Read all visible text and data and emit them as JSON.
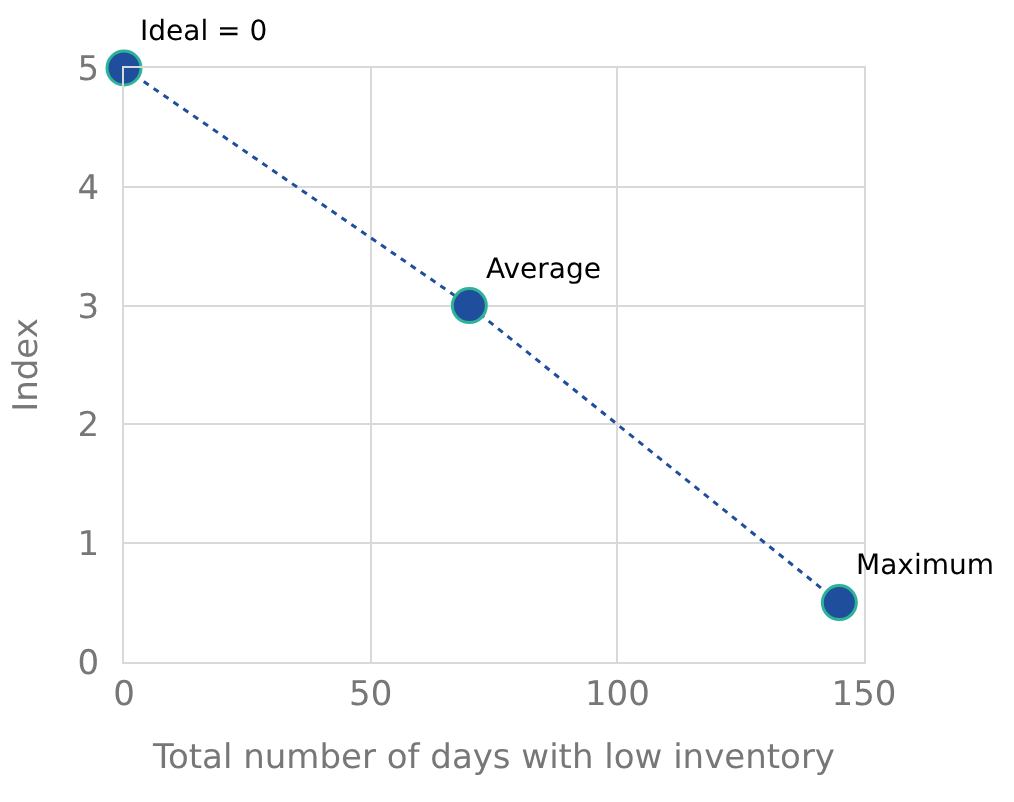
{
  "chart_data": {
    "type": "scatter",
    "xlabel": "Total number of days with low inventory",
    "ylabel": "Index",
    "x": [
      0,
      70,
      145
    ],
    "series": [
      {
        "color": "#1f4e9c",
        "values": [
          5,
          3,
          0.5
        ]
      }
    ],
    "line_style": "dotted",
    "marker": "circle",
    "xlim": [
      0,
      150
    ],
    "xticks": [
      0,
      50,
      100,
      150
    ],
    "ylim": [
      0,
      5
    ],
    "yticks": [
      0,
      1,
      2,
      3,
      4,
      5
    ],
    "grid": true,
    "annotations": [
      {
        "text": "Ideal = 0",
        "x": 0,
        "y": 5
      },
      {
        "text": "Average",
        "x": 70,
        "y": 3
      },
      {
        "text": "Maximum",
        "x": 145,
        "y": 0.5
      }
    ]
  }
}
